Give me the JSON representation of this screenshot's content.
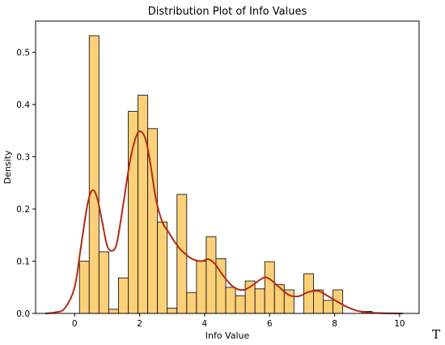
{
  "chart_data": {
    "type": "bar",
    "title": "Distribution Plot of Info Values",
    "xlabel": "Info Value",
    "ylabel": "Density",
    "xlim": [
      -1.2,
      10.6
    ],
    "ylim": [
      0,
      0.56
    ],
    "xticks": [
      0,
      2,
      4,
      6,
      8,
      10
    ],
    "yticks": [
      0.0,
      0.1,
      0.2,
      0.3,
      0.4,
      0.5
    ],
    "bar_color": "#fcd077",
    "bar_edge_color": "#1a1a1a",
    "kde_color": "#b22b10",
    "bins": [
      {
        "x0": 0.15,
        "x1": 0.45,
        "density": 0.1
      },
      {
        "x0": 0.45,
        "x1": 0.75,
        "density": 0.532
      },
      {
        "x0": 0.75,
        "x1": 1.05,
        "density": 0.118
      },
      {
        "x0": 1.05,
        "x1": 1.35,
        "density": 0.008
      },
      {
        "x0": 1.35,
        "x1": 1.65,
        "density": 0.068
      },
      {
        "x0": 1.65,
        "x1": 1.95,
        "density": 0.387
      },
      {
        "x0": 1.95,
        "x1": 2.25,
        "density": 0.418
      },
      {
        "x0": 2.25,
        "x1": 2.55,
        "density": 0.354
      },
      {
        "x0": 2.55,
        "x1": 2.85,
        "density": 0.175
      },
      {
        "x0": 2.85,
        "x1": 3.15,
        "density": 0.01
      },
      {
        "x0": 3.15,
        "x1": 3.45,
        "density": 0.228
      },
      {
        "x0": 3.45,
        "x1": 3.75,
        "density": 0.04
      },
      {
        "x0": 3.75,
        "x1": 4.05,
        "density": 0.1
      },
      {
        "x0": 4.05,
        "x1": 4.35,
        "density": 0.147
      },
      {
        "x0": 4.35,
        "x1": 4.65,
        "density": 0.105
      },
      {
        "x0": 4.65,
        "x1": 4.95,
        "density": 0.05
      },
      {
        "x0": 4.95,
        "x1": 5.25,
        "density": 0.034
      },
      {
        "x0": 5.25,
        "x1": 5.55,
        "density": 0.062
      },
      {
        "x0": 5.55,
        "x1": 5.85,
        "density": 0.047
      },
      {
        "x0": 5.85,
        "x1": 6.15,
        "density": 0.099
      },
      {
        "x0": 6.15,
        "x1": 6.45,
        "density": 0.055
      },
      {
        "x0": 6.45,
        "x1": 6.75,
        "density": 0.045
      },
      {
        "x0": 6.75,
        "x1": 7.05,
        "density": 0.0
      },
      {
        "x0": 7.05,
        "x1": 7.35,
        "density": 0.076
      },
      {
        "x0": 7.35,
        "x1": 7.65,
        "density": 0.045
      },
      {
        "x0": 7.65,
        "x1": 7.95,
        "density": 0.025
      },
      {
        "x0": 7.95,
        "x1": 8.25,
        "density": 0.045
      },
      {
        "x0": 8.85,
        "x1": 9.15,
        "density": 0.004
      }
    ],
    "kde": {
      "x": [
        -0.9,
        -0.6,
        -0.3,
        0.0,
        0.2,
        0.4,
        0.55,
        0.7,
        0.85,
        1.0,
        1.15,
        1.3,
        1.5,
        1.7,
        1.9,
        2.05,
        2.2,
        2.35,
        2.5,
        2.7,
        2.9,
        3.1,
        3.3,
        3.6,
        3.9,
        4.1,
        4.3,
        4.6,
        4.9,
        5.2,
        5.5,
        5.8,
        6.0,
        6.3,
        6.6,
        6.9,
        7.2,
        7.5,
        7.8,
        8.1,
        8.4,
        8.7,
        9.0,
        9.4,
        9.8,
        10.1
      ],
      "y": [
        0.0,
        0.002,
        0.01,
        0.05,
        0.13,
        0.21,
        0.236,
        0.22,
        0.175,
        0.13,
        0.12,
        0.135,
        0.21,
        0.29,
        0.34,
        0.348,
        0.33,
        0.28,
        0.22,
        0.175,
        0.155,
        0.135,
        0.12,
        0.105,
        0.1,
        0.104,
        0.096,
        0.07,
        0.05,
        0.045,
        0.055,
        0.068,
        0.066,
        0.05,
        0.035,
        0.033,
        0.041,
        0.043,
        0.033,
        0.022,
        0.012,
        0.005,
        0.002,
        0.0005,
        0.0001,
        0.0
      ]
    }
  },
  "corner_mark": "T"
}
